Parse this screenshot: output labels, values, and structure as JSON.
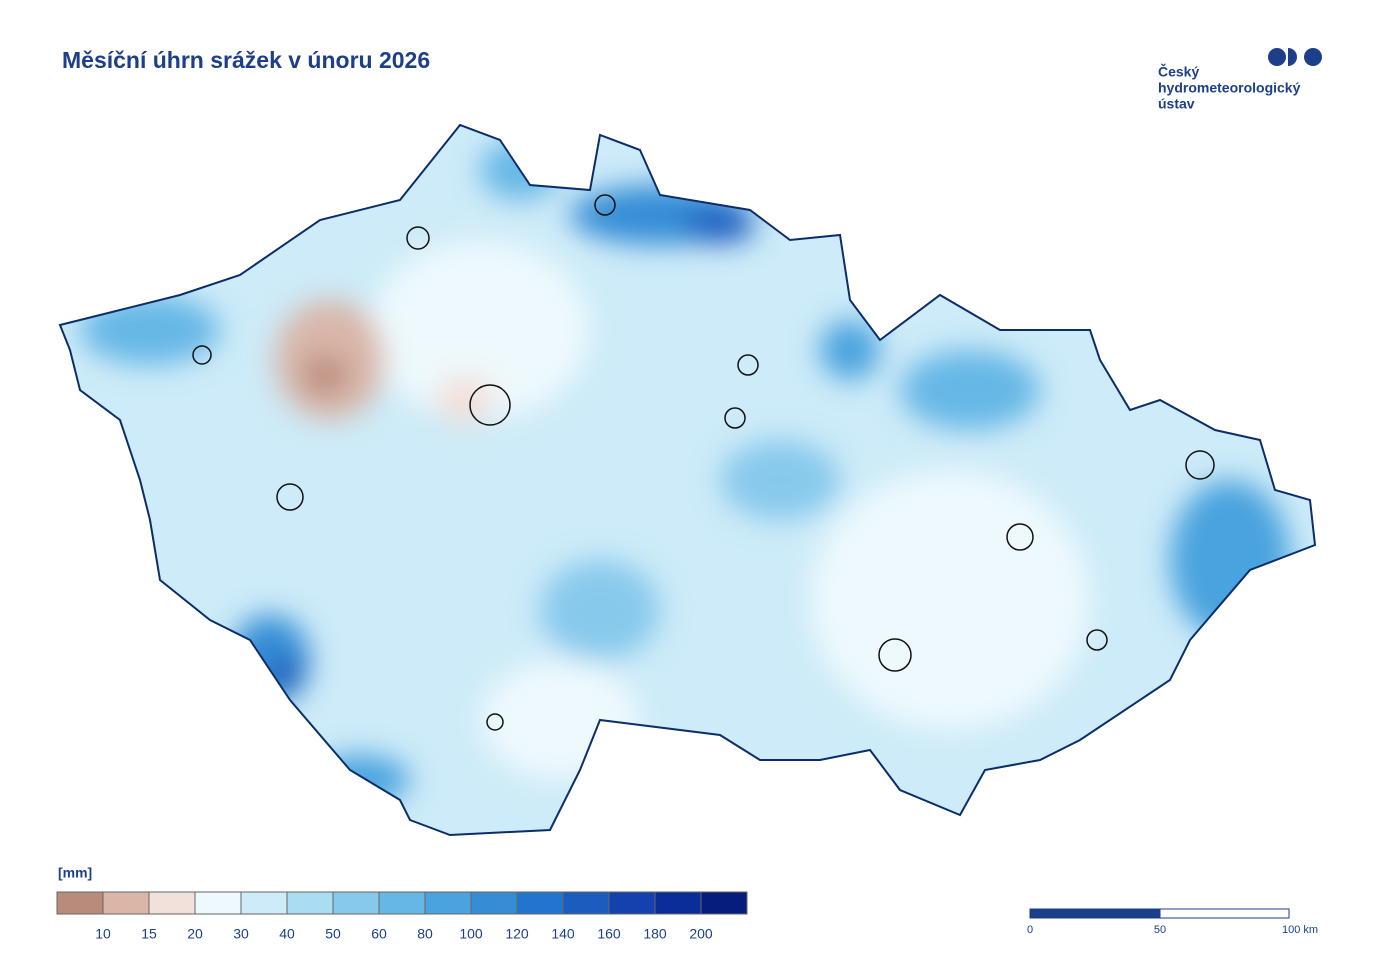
{
  "title": "Měsíční úhrn srážek v únoru 2026",
  "logo": {
    "lines": [
      "Český",
      "hydrometeorologický",
      "ústav"
    ]
  },
  "legend": {
    "unit": "[mm]",
    "colors": [
      "#b98b7b",
      "#d9b6a8",
      "#f2e1da",
      "#eef9fd",
      "#cdebf8",
      "#aadcf2",
      "#87c9ec",
      "#66b7e6",
      "#4aa3de",
      "#358dd6",
      "#2374cc",
      "#1a5dbf",
      "#1341ae",
      "#0b2d9a",
      "#061d7d"
    ],
    "labels": [
      10,
      15,
      20,
      30,
      40,
      50,
      60,
      80,
      100,
      120,
      140,
      160,
      180,
      200
    ]
  },
  "scale_bar": {
    "labels": [
      "0",
      "50",
      "100 km"
    ]
  }
}
